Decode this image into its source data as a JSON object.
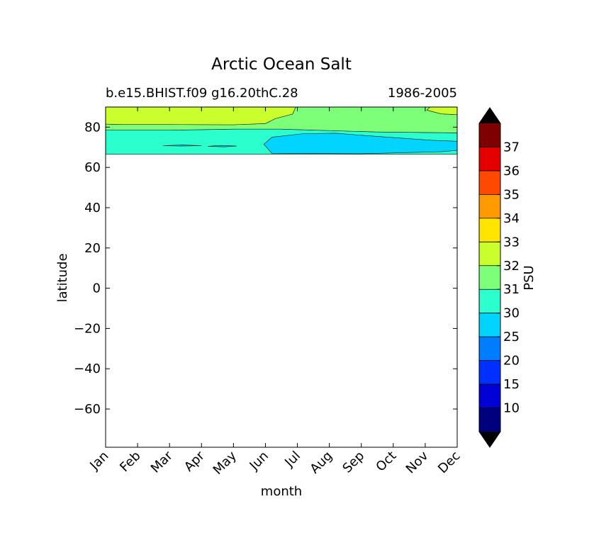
{
  "chart_data": {
    "type": "heatmap",
    "title": "Arctic Ocean Salt",
    "subtitle_left": "b.e15.BHIST.f09 g16.20thC.28",
    "subtitle_right": "1986-2005",
    "xlabel": "month",
    "ylabel": "latitude",
    "x_categories": [
      "Jan",
      "Feb",
      "Mar",
      "Apr",
      "May",
      "Jun",
      "Jul",
      "Aug",
      "Sep",
      "Oct",
      "Nov",
      "Dec"
    ],
    "y_ticks": [
      80,
      60,
      40,
      20,
      0,
      -20,
      -40,
      -60
    ],
    "ylim": [
      -79,
      90
    ],
    "data_lat_range": [
      66.5,
      90
    ],
    "colorbar": {
      "label": "PSU",
      "levels": [
        5,
        10,
        15,
        20,
        25,
        30,
        31,
        32,
        33,
        34,
        35,
        36,
        37,
        38
      ],
      "tick_labels": [
        "10",
        "15",
        "20",
        "25",
        "30",
        "31",
        "32",
        "33",
        "34",
        "35",
        "36",
        "37"
      ],
      "colors": [
        "#00007f",
        "#0000d6",
        "#0030ff",
        "#007cff",
        "#00d4ff",
        "#2affcd",
        "#7dff7a",
        "#caff2d",
        "#ffe500",
        "#ff9a00",
        "#ff4800",
        "#e40000",
        "#7f0000"
      ],
      "extend_low_color": "#000000",
      "extend_high_color": "#000000"
    },
    "contour_regions": [
      {
        "name": "salinity-30-31",
        "color": "#2affcd",
        "points": [
          [
            0,
            66.5
          ],
          [
            11,
            66.5
          ],
          [
            11,
            77.2
          ],
          [
            8.5,
            77.6
          ],
          [
            5.5,
            79.0
          ],
          [
            4,
            79.0
          ],
          [
            2,
            78.5
          ],
          [
            0,
            78.5
          ]
        ]
      },
      {
        "name": "salinity-31-32",
        "color": "#7dff7a",
        "points": [
          [
            0,
            78.5
          ],
          [
            2,
            78.5
          ],
          [
            4,
            79.0
          ],
          [
            5.5,
            79.0
          ],
          [
            8.5,
            77.6
          ],
          [
            11,
            77.2
          ],
          [
            11,
            90
          ],
          [
            10.15,
            90
          ],
          [
            10.05,
            88.5
          ],
          [
            10.5,
            86.6
          ],
          [
            11,
            86.2
          ],
          [
            11,
            90
          ],
          [
            5.95,
            90
          ],
          [
            5.85,
            86.5
          ],
          [
            5.3,
            84.2
          ],
          [
            5.0,
            81.8
          ],
          [
            4,
            81.2
          ],
          [
            2,
            81.3
          ],
          [
            0.5,
            81.3
          ],
          [
            0,
            81.5
          ]
        ]
      },
      {
        "name": "salinity-32-33",
        "color": "#caff2d",
        "points": [
          [
            0,
            81.5
          ],
          [
            0.5,
            81.3
          ],
          [
            2,
            81.3
          ],
          [
            4,
            81.2
          ],
          [
            5.0,
            81.8
          ],
          [
            5.3,
            84.2
          ],
          [
            5.85,
            86.5
          ],
          [
            5.95,
            90
          ],
          [
            0,
            90
          ]
        ]
      },
      {
        "name": "salinity-32-33-dec",
        "color": "#caff2d",
        "points": [
          [
            10.15,
            90
          ],
          [
            10.05,
            88.5
          ],
          [
            10.5,
            86.6
          ],
          [
            11,
            86.2
          ],
          [
            11,
            90
          ]
        ]
      },
      {
        "name": "salinity-25-30-main",
        "color": "#00d4ff",
        "points": [
          [
            5.2,
            67.0
          ],
          [
            8,
            66.8
          ],
          [
            10.5,
            67.8
          ],
          [
            11,
            68.5
          ],
          [
            11,
            73.0
          ],
          [
            10.2,
            73.5
          ],
          [
            8,
            76.0
          ],
          [
            7.2,
            77.0
          ],
          [
            6.2,
            76.8
          ],
          [
            5.2,
            75.0
          ],
          [
            4.95,
            71.5
          ]
        ]
      },
      {
        "name": "salinity-25-30-patch-a",
        "color": "#00d4ff",
        "points": [
          [
            1.8,
            70.8
          ],
          [
            2.4,
            70.6
          ],
          [
            3.0,
            70.8
          ],
          [
            2.4,
            71.2
          ]
        ]
      },
      {
        "name": "salinity-25-30-patch-b",
        "color": "#00d4ff",
        "points": [
          [
            3.2,
            70.5
          ],
          [
            3.7,
            70.2
          ],
          [
            4.1,
            70.6
          ],
          [
            3.6,
            70.9
          ]
        ]
      }
    ]
  }
}
